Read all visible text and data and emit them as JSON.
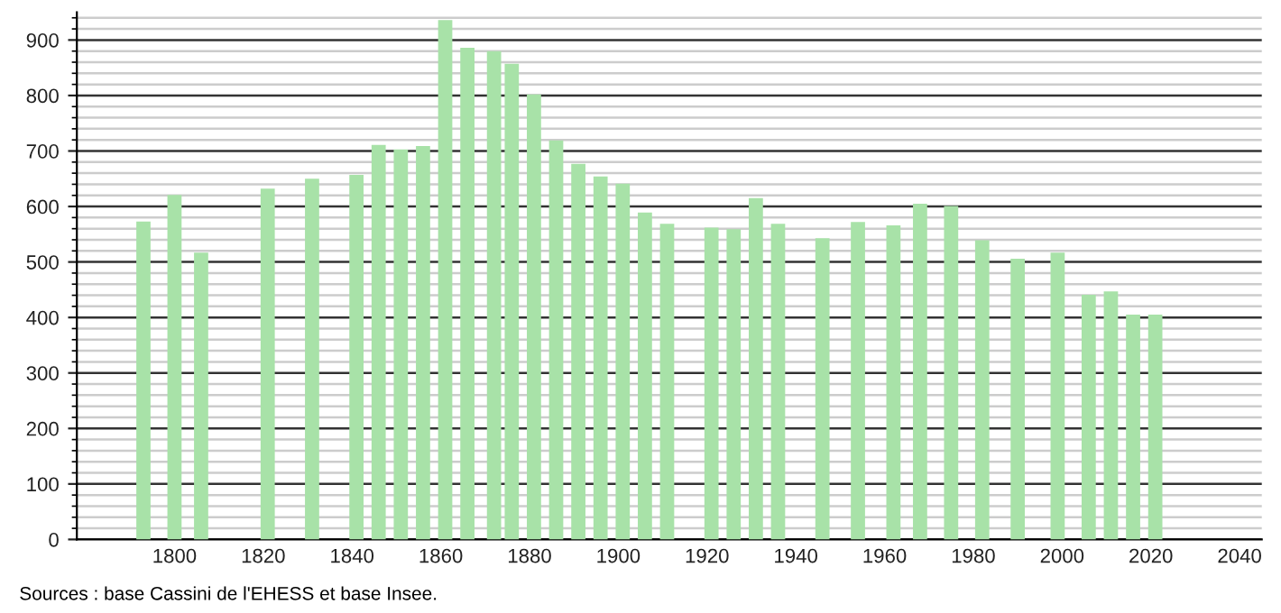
{
  "chart_data": {
    "type": "bar",
    "x": [
      1793,
      1800,
      1806,
      1821,
      1831,
      1841,
      1846,
      1851,
      1856,
      1861,
      1866,
      1872,
      1876,
      1881,
      1886,
      1891,
      1896,
      1901,
      1906,
      1911,
      1921,
      1926,
      1931,
      1936,
      1946,
      1954,
      1962,
      1968,
      1975,
      1982,
      1990,
      1999,
      2006,
      2011,
      2016,
      2021
    ],
    "values": [
      573,
      621,
      517,
      632,
      650,
      657,
      711,
      703,
      709,
      936,
      886,
      880,
      857,
      802,
      719,
      677,
      654,
      641,
      589,
      569,
      562,
      559,
      615,
      569,
      543,
      572,
      566,
      605,
      601,
      539,
      506,
      517,
      441,
      447,
      405,
      405
    ],
    "color": "#a8e2a8",
    "xlim": [
      1778,
      2045
    ],
    "xticks": [
      1800,
      1820,
      1840,
      1860,
      1880,
      1900,
      1920,
      1940,
      1960,
      1980,
      2000,
      2020,
      2040
    ],
    "ylim": [
      0,
      950
    ],
    "yticks": [
      0,
      100,
      200,
      300,
      400,
      500,
      600,
      700,
      800,
      900
    ],
    "grid": "y",
    "annotations": [
      "Sources : base Cassini de l'EHESS et base Insee."
    ]
  }
}
